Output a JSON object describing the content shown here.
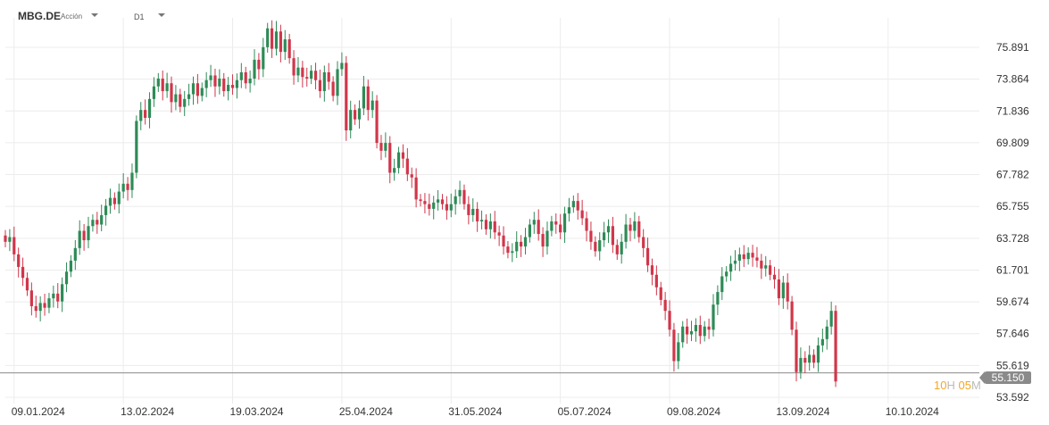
{
  "toolbar": {
    "symbol": "MBG.DE",
    "symbol_type": "Acción",
    "timeframe": "D1"
  },
  "countdown": {
    "hours": "10",
    "hours_unit": "H",
    "minutes": "05",
    "minutes_unit": "M"
  },
  "colors": {
    "up": "#2e8b57",
    "down": "#d0364a",
    "grid": "#ececec",
    "current_line": "#8a8a8a"
  },
  "chart_data": {
    "type": "candlestick",
    "title": "",
    "xlabel": "",
    "ylabel": "",
    "grid": true,
    "current_price": 55.15,
    "current_price_label": "55.150",
    "y_ticks": [
      75.891,
      73.864,
      71.836,
      69.809,
      67.782,
      65.755,
      63.728,
      61.701,
      59.674,
      57.646,
      55.619,
      53.592
    ],
    "y_tick_labels": [
      "75.891",
      "73.864",
      "71.836",
      "69.809",
      "67.782",
      "65.755",
      "63.728",
      "61.701",
      "59.674",
      "57.646",
      "55.619",
      "53.592"
    ],
    "ylim": [
      53.0,
      77.6
    ],
    "x_labels": [
      "09.01.2024",
      "13.02.2024",
      "19.03.2024",
      "25.04.2024",
      "31.05.2024",
      "05.07.2024",
      "09.08.2024",
      "13.09.2024",
      "10.10.2024"
    ],
    "x_label_index": [
      2,
      27,
      52,
      77,
      102,
      127,
      152,
      177,
      202
    ],
    "closes": [
      63.5,
      63.8,
      62.7,
      61.9,
      61.2,
      60.4,
      59.4,
      59.1,
      59.6,
      59.3,
      59.9,
      60.2,
      59.7,
      60.8,
      61.6,
      62.3,
      63.1,
      64.2,
      63.6,
      64.5,
      64.9,
      64.6,
      65.2,
      65.8,
      66.3,
      65.9,
      66.7,
      67.2,
      66.8,
      67.9,
      71.2,
      71.9,
      71.4,
      72.6,
      73.4,
      73.9,
      73.1,
      73.6,
      72.4,
      72.9,
      72.1,
      72.6,
      72.9,
      73.6,
      72.8,
      73.3,
      73.8,
      74.1,
      73.4,
      73.9,
      73.1,
      73.5,
      73.3,
      73.8,
      74.3,
      73.6,
      73.9,
      75.1,
      74.5,
      75.9,
      77.1,
      75.8,
      76.9,
      75.6,
      76.4,
      75.2,
      74.1,
      74.6,
      74.0,
      73.9,
      74.4,
      73.8,
      73.1,
      74.3,
      73.7,
      72.8,
      74.5,
      74.9,
      70.6,
      71.9,
      71.3,
      72.0,
      73.4,
      71.9,
      72.5,
      69.8,
      69.3,
      69.8,
      67.9,
      68.2,
      69.2,
      68.8,
      67.8,
      67.6,
      66.2,
      66.1,
      65.9,
      65.6,
      66.0,
      66.2,
      65.9,
      65.5,
      65.9,
      66.4,
      66.8,
      65.9,
      65.2,
      65.6,
      64.8,
      64.9,
      64.3,
      64.8,
      64.1,
      63.9,
      63.2,
      62.8,
      62.9,
      63.5,
      63.2,
      63.8,
      64.6,
      64.9,
      64.0,
      63.2,
      64.2,
      64.8,
      64.6,
      64.1,
      65.3,
      65.7,
      66.1,
      65.5,
      65.0,
      64.2,
      63.5,
      62.9,
      63.6,
      64.1,
      64.5,
      63.3,
      62.7,
      63.5,
      64.6,
      64.2,
      64.8,
      63.8,
      63.1,
      62.0,
      61.4,
      60.6,
      59.8,
      59.1,
      57.9,
      55.9,
      57.1,
      58.1,
      57.6,
      57.8,
      58.2,
      57.5,
      58.1,
      57.9,
      59.5,
      60.3,
      61.3,
      61.6,
      62.1,
      62.3,
      62.7,
      62.4,
      62.8,
      62.5,
      62.3,
      61.8,
      62.0,
      61.4,
      61.1,
      59.9,
      60.9,
      59.7,
      57.9,
      55.2,
      56.1,
      55.8,
      56.3,
      55.8,
      56.9,
      57.3,
      58.1,
      59.1,
      54.6
    ]
  }
}
